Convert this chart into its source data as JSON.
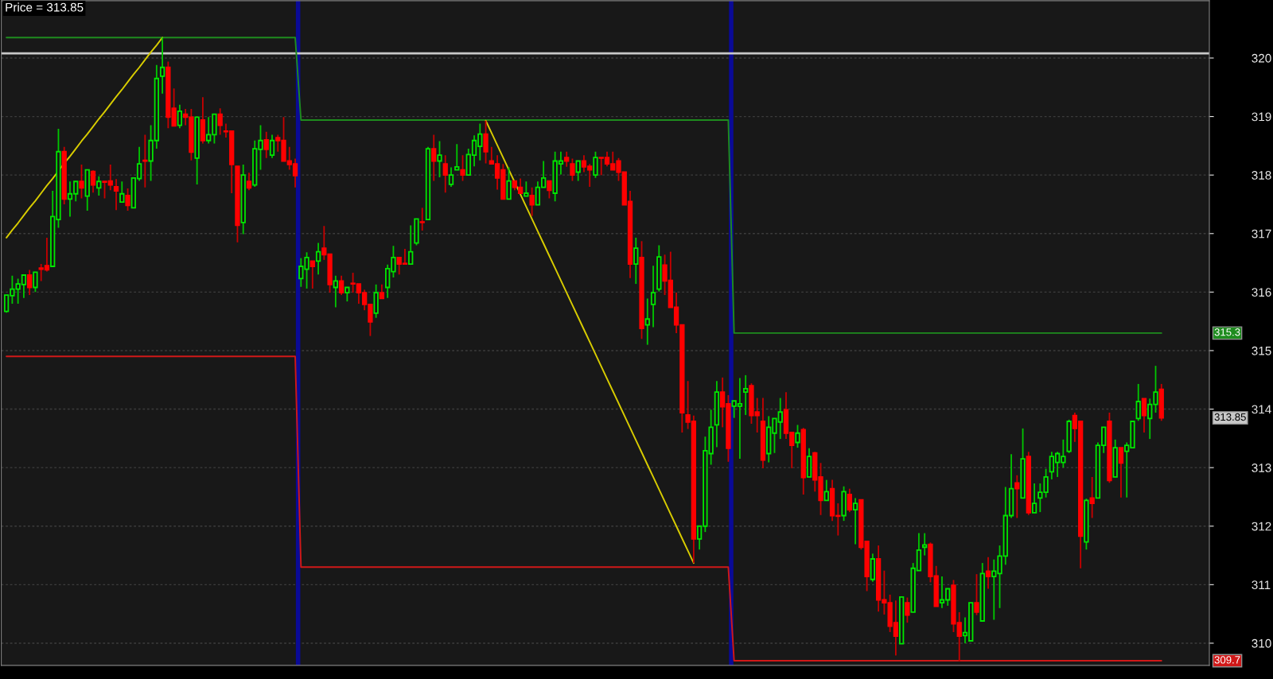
{
  "chart_data": {
    "type": "candlestick",
    "title": "Price = 313.85",
    "categories": [
      null,
      null,
      null,
      null,
      null,
      null,
      null,
      null,
      null,
      null,
      null,
      null,
      null,
      null,
      null,
      null,
      null,
      null,
      null,
      null,
      null,
      null,
      null,
      null,
      null,
      null,
      null,
      null,
      null,
      null,
      null,
      null,
      null,
      null,
      null,
      null,
      null,
      null,
      null,
      null,
      null,
      null,
      null,
      null,
      null,
      null,
      null,
      null,
      null,
      null,
      null,
      null,
      null,
      null,
      null,
      null,
      null,
      null,
      null,
      null,
      null,
      null,
      null,
      null,
      null,
      null,
      null,
      null,
      null,
      null,
      null,
      null,
      null,
      null,
      null,
      null,
      null,
      null,
      null,
      null,
      null,
      null,
      null,
      null,
      null,
      null,
      null,
      null,
      null,
      null,
      null,
      null,
      null,
      null,
      null,
      null,
      null,
      null,
      null,
      null,
      null,
      null,
      null,
      null,
      null,
      null,
      null,
      null,
      null,
      null,
      null,
      null,
      null,
      null,
      null,
      null,
      null,
      null,
      null,
      null,
      null,
      null,
      null,
      null,
      null,
      null,
      null,
      null,
      null,
      null,
      null,
      null,
      null,
      null,
      null,
      null,
      null,
      null,
      null,
      null,
      null,
      null,
      null,
      null,
      null,
      null,
      null,
      null,
      null,
      null,
      null,
      null,
      null,
      null,
      null,
      null,
      null,
      null,
      null,
      null,
      null,
      null,
      null,
      null,
      null,
      null,
      null,
      null,
      null,
      null,
      null,
      null,
      null,
      null,
      null,
      null,
      null,
      null,
      null,
      null,
      null,
      null,
      null,
      null,
      null,
      null,
      null,
      null,
      null,
      null,
      null,
      null,
      null,
      null,
      null,
      null,
      null,
      null,
      null,
      null,
      null
    ],
    "ohlc": [
      [
        315.67,
        315.95,
        315.65,
        315.95
      ],
      [
        315.94,
        316.28,
        315.8,
        316.05
      ],
      [
        316.05,
        316.23,
        315.8,
        316.14
      ],
      [
        316.13,
        316.29,
        315.9,
        316.29
      ],
      [
        316.29,
        316.38,
        315.95,
        316.08
      ],
      [
        316.08,
        316.34,
        316.0,
        316.34
      ],
      [
        316.41,
        316.48,
        316.19,
        316.39
      ],
      [
        316.45,
        316.93,
        316.35,
        316.38
      ],
      [
        316.44,
        317.73,
        316.44,
        317.29
      ],
      [
        317.24,
        318.79,
        317.1,
        318.4
      ],
      [
        318.4,
        318.48,
        317.5,
        317.59
      ],
      [
        317.59,
        317.89,
        317.29,
        317.68
      ],
      [
        317.68,
        317.89,
        317.55,
        317.89
      ],
      [
        317.89,
        318.18,
        317.6,
        317.78
      ],
      [
        317.64,
        318.09,
        317.39,
        318.09
      ],
      [
        318.06,
        318.08,
        317.7,
        317.83
      ],
      [
        317.78,
        317.98,
        317.65,
        317.89
      ],
      [
        317.89,
        317.89,
        317.6,
        317.88
      ],
      [
        317.9,
        318.18,
        317.74,
        317.83
      ],
      [
        317.8,
        317.93,
        317.4,
        317.73
      ],
      [
        317.54,
        317.89,
        317.54,
        317.68
      ],
      [
        317.65,
        317.77,
        317.39,
        317.48
      ],
      [
        317.44,
        317.95,
        317.44,
        317.95
      ],
      [
        317.94,
        318.48,
        317.9,
        318.19
      ],
      [
        318.25,
        318.69,
        317.79,
        318.24
      ],
      [
        318.24,
        318.85,
        317.9,
        318.59
      ],
      [
        318.59,
        319.88,
        318.45,
        319.65
      ],
      [
        319.69,
        320.35,
        319.39,
        319.84
      ],
      [
        319.84,
        319.94,
        318.8,
        318.99
      ],
      [
        319.14,
        319.48,
        318.84,
        318.84
      ],
      [
        318.85,
        319.2,
        318.8,
        319.09
      ],
      [
        319.04,
        319.13,
        318.85,
        318.99
      ],
      [
        318.99,
        319.13,
        318.25,
        318.39
      ],
      [
        318.29,
        318.99,
        317.84,
        318.99
      ],
      [
        318.94,
        319.33,
        318.54,
        318.59
      ],
      [
        318.59,
        318.99,
        318.54,
        318.69
      ],
      [
        318.69,
        319.04,
        318.54,
        319.04
      ],
      [
        319.04,
        319.14,
        318.69,
        318.85
      ],
      [
        318.75,
        318.88,
        318.64,
        318.74
      ],
      [
        318.75,
        318.75,
        317.69,
        318.18
      ],
      [
        318.15,
        318.15,
        316.85,
        317.14
      ],
      [
        317.19,
        318.18,
        316.99,
        318.0
      ],
      [
        317.89,
        318.04,
        317.74,
        317.78
      ],
      [
        317.83,
        318.59,
        317.8,
        318.45
      ],
      [
        318.44,
        318.85,
        318.09,
        318.59
      ],
      [
        318.6,
        318.74,
        318.29,
        318.44
      ],
      [
        318.34,
        318.69,
        318.29,
        318.59
      ],
      [
        318.64,
        318.69,
        318.4,
        318.59
      ],
      [
        318.59,
        318.99,
        318.24,
        318.24
      ],
      [
        318.24,
        318.48,
        318.09,
        318.18
      ],
      [
        318.19,
        318.28,
        317.79,
        317.99
      ],
      [
        316.23,
        316.58,
        316.09,
        316.44
      ],
      [
        316.39,
        316.68,
        316.06,
        316.59
      ],
      [
        316.53,
        316.53,
        316.06,
        316.44
      ],
      [
        316.53,
        316.84,
        316.3,
        316.69
      ],
      [
        316.75,
        317.13,
        316.55,
        316.64
      ],
      [
        316.65,
        316.65,
        315.99,
        316.13
      ],
      [
        316.08,
        316.28,
        315.74,
        316.19
      ],
      [
        316.19,
        316.28,
        315.95,
        315.99
      ],
      [
        315.99,
        316.08,
        315.84,
        316.08
      ],
      [
        316.15,
        316.33,
        315.99,
        316.14
      ],
      [
        316.14,
        316.14,
        315.8,
        315.99
      ],
      [
        315.99,
        316.04,
        315.69,
        315.79
      ],
      [
        315.79,
        315.79,
        315.25,
        315.49
      ],
      [
        315.64,
        316.13,
        315.56,
        315.99
      ],
      [
        315.99,
        316.13,
        315.89,
        315.89
      ],
      [
        316.08,
        316.47,
        315.9,
        316.4
      ],
      [
        316.35,
        316.79,
        316.25,
        316.59
      ],
      [
        316.59,
        316.59,
        316.3,
        316.48
      ],
      [
        316.49,
        316.74,
        316.48,
        316.48
      ],
      [
        316.48,
        317.14,
        316.48,
        316.69
      ],
      [
        316.84,
        317.25,
        316.8,
        317.25
      ],
      [
        317.2,
        317.44,
        317.05,
        317.19
      ],
      [
        317.24,
        318.48,
        317.24,
        318.45
      ],
      [
        318.45,
        318.69,
        317.9,
        318.24
      ],
      [
        318.24,
        318.58,
        317.96,
        318.34
      ],
      [
        318.19,
        318.34,
        317.7,
        318.0
      ],
      [
        317.84,
        318.13,
        317.8,
        318.0
      ],
      [
        318.09,
        318.53,
        318.09,
        318.14
      ],
      [
        318.09,
        318.34,
        317.9,
        318.0
      ],
      [
        318.0,
        318.45,
        318.0,
        318.35
      ],
      [
        318.34,
        318.68,
        318.15,
        318.59
      ],
      [
        318.49,
        318.88,
        318.25,
        318.7
      ],
      [
        318.7,
        318.93,
        318.2,
        318.4
      ],
      [
        318.24,
        318.48,
        318.19,
        318.19
      ],
      [
        318.19,
        318.34,
        317.75,
        317.95
      ],
      [
        318.09,
        318.19,
        317.59,
        317.59
      ],
      [
        317.59,
        318.13,
        317.59,
        317.9
      ],
      [
        317.9,
        317.9,
        317.74,
        317.79
      ],
      [
        317.79,
        317.94,
        317.69,
        317.69
      ],
      [
        317.64,
        317.89,
        317.64,
        317.69
      ],
      [
        317.65,
        317.79,
        317.3,
        317.49
      ],
      [
        317.49,
        317.89,
        317.49,
        317.79
      ],
      [
        317.79,
        318.24,
        317.79,
        317.95
      ],
      [
        317.9,
        317.9,
        317.6,
        317.74
      ],
      [
        317.69,
        318.4,
        317.55,
        318.24
      ],
      [
        318.19,
        318.4,
        318.01,
        318.24
      ],
      [
        318.3,
        318.4,
        318.14,
        318.24
      ],
      [
        318.19,
        318.28,
        317.9,
        318.0
      ],
      [
        318.05,
        318.24,
        317.9,
        318.24
      ],
      [
        318.24,
        318.34,
        318.05,
        318.14
      ],
      [
        318.15,
        318.19,
        317.8,
        318.09
      ],
      [
        318.0,
        318.4,
        317.95,
        318.3
      ],
      [
        318.3,
        318.3,
        318.0,
        318.29
      ],
      [
        318.3,
        318.4,
        318.15,
        318.19
      ],
      [
        318.19,
        318.4,
        318.09,
        318.09
      ],
      [
        318.24,
        318.29,
        317.9,
        318.05
      ],
      [
        318.05,
        318.05,
        317.49,
        317.49
      ],
      [
        317.55,
        317.73,
        316.24,
        316.48
      ],
      [
        316.48,
        316.93,
        316.14,
        316.75
      ],
      [
        316.59,
        316.87,
        315.2,
        315.38
      ],
      [
        315.44,
        315.89,
        315.1,
        315.54
      ],
      [
        315.79,
        316.45,
        315.4,
        315.99
      ],
      [
        316.05,
        316.8,
        316.01,
        316.6
      ],
      [
        316.46,
        316.64,
        315.95,
        316.19
      ],
      [
        316.2,
        316.69,
        315.74,
        315.74
      ],
      [
        315.74,
        315.99,
        315.3,
        315.44
      ],
      [
        315.44,
        315.44,
        313.6,
        313.94
      ],
      [
        313.9,
        314.48,
        313.66,
        313.78
      ],
      [
        313.79,
        313.89,
        311.37,
        311.78
      ],
      [
        311.78,
        312.0,
        311.6,
        312.0
      ],
      [
        312.0,
        313.53,
        311.9,
        313.29
      ],
      [
        313.24,
        313.99,
        313.05,
        313.69
      ],
      [
        313.73,
        314.48,
        313.35,
        314.29
      ],
      [
        314.29,
        314.54,
        313.69,
        314.04
      ],
      [
        314.09,
        314.24,
        313.1,
        313.33
      ],
      [
        314.05,
        314.14,
        313.85,
        314.14
      ],
      [
        314.05,
        314.53,
        313.15,
        314.09
      ],
      [
        314.29,
        314.58,
        313.9,
        314.35
      ],
      [
        314.4,
        314.44,
        313.75,
        313.89
      ],
      [
        313.95,
        314.19,
        313.6,
        313.89
      ],
      [
        313.79,
        314.19,
        312.99,
        313.13
      ],
      [
        313.24,
        313.88,
        313.09,
        313.69
      ],
      [
        313.59,
        313.84,
        313.25,
        313.84
      ],
      [
        313.78,
        314.19,
        313.49,
        313.95
      ],
      [
        313.99,
        314.29,
        313.49,
        313.59
      ],
      [
        313.6,
        313.6,
        312.99,
        313.38
      ],
      [
        313.43,
        313.73,
        313.34,
        313.59
      ],
      [
        313.65,
        313.68,
        312.54,
        312.83
      ],
      [
        312.84,
        313.33,
        312.84,
        313.19
      ],
      [
        313.25,
        313.27,
        312.59,
        312.79
      ],
      [
        312.84,
        313.08,
        312.19,
        312.44
      ],
      [
        312.44,
        312.79,
        312.44,
        312.59
      ],
      [
        312.64,
        312.79,
        312.09,
        312.18
      ],
      [
        312.18,
        312.39,
        311.84,
        312.17
      ],
      [
        312.18,
        312.68,
        312.09,
        312.59
      ],
      [
        312.54,
        312.64,
        312.24,
        312.28
      ],
      [
        312.28,
        312.48,
        311.69,
        312.39
      ],
      [
        312.45,
        312.45,
        311.6,
        311.64
      ],
      [
        311.74,
        311.74,
        310.89,
        311.14
      ],
      [
        311.09,
        311.53,
        311.05,
        311.44
      ],
      [
        311.44,
        311.67,
        310.54,
        310.74
      ],
      [
        310.74,
        311.24,
        310.49,
        310.69
      ],
      [
        310.69,
        310.83,
        310.19,
        310.29
      ],
      [
        310.35,
        310.73,
        309.79,
        310.12
      ],
      [
        309.99,
        310.79,
        309.99,
        310.79
      ],
      [
        310.69,
        310.78,
        310.35,
        310.48
      ],
      [
        310.53,
        311.37,
        310.53,
        311.28
      ],
      [
        311.24,
        311.88,
        311.24,
        311.59
      ],
      [
        311.64,
        311.88,
        311.5,
        311.68
      ],
      [
        311.69,
        311.72,
        311.04,
        311.14
      ],
      [
        311.15,
        311.32,
        310.63,
        310.63
      ],
      [
        310.69,
        311.14,
        310.6,
        310.74
      ],
      [
        310.74,
        310.93,
        310.64,
        310.93
      ],
      [
        310.99,
        311.08,
        310.19,
        310.33
      ],
      [
        310.35,
        310.53,
        309.69,
        310.12
      ],
      [
        310.13,
        310.44,
        310.0,
        310.18
      ],
      [
        310.04,
        310.69,
        310.04,
        310.69
      ],
      [
        310.69,
        311.18,
        310.48,
        310.53
      ],
      [
        310.38,
        311.37,
        310.38,
        311.19
      ],
      [
        311.23,
        311.47,
        310.93,
        311.14
      ],
      [
        311.14,
        311.43,
        310.4,
        311.23
      ],
      [
        311.19,
        311.67,
        310.6,
        311.49
      ],
      [
        311.49,
        312.67,
        311.34,
        312.18
      ],
      [
        312.18,
        313.23,
        312.14,
        312.64
      ],
      [
        312.74,
        312.87,
        312.14,
        312.64
      ],
      [
        312.48,
        313.67,
        312.48,
        313.15
      ],
      [
        313.19,
        313.27,
        312.19,
        312.23
      ],
      [
        312.23,
        312.73,
        312.23,
        312.39
      ],
      [
        312.48,
        312.73,
        312.24,
        312.58
      ],
      [
        312.58,
        312.98,
        312.49,
        312.84
      ],
      [
        312.93,
        313.27,
        312.8,
        313.19
      ],
      [
        313.09,
        313.27,
        312.84,
        313.24
      ],
      [
        313.09,
        313.48,
        313.0,
        313.19
      ],
      [
        313.28,
        313.82,
        313.25,
        313.79
      ],
      [
        313.89,
        313.94,
        313.44,
        313.67
      ],
      [
        313.79,
        313.79,
        311.28,
        311.83
      ],
      [
        311.73,
        312.47,
        311.6,
        312.44
      ],
      [
        312.48,
        312.84,
        312.14,
        312.39
      ],
      [
        312.48,
        313.43,
        312.48,
        313.38
      ],
      [
        313.38,
        313.69,
        313.25,
        313.69
      ],
      [
        313.79,
        313.94,
        312.74,
        312.78
      ],
      [
        312.84,
        313.48,
        312.84,
        313.34
      ],
      [
        313.34,
        313.34,
        312.49,
        313.08
      ],
      [
        313.28,
        313.43,
        312.49,
        313.38
      ],
      [
        313.34,
        313.79,
        313.33,
        313.79
      ],
      [
        313.84,
        314.43,
        313.8,
        314.13
      ],
      [
        314.18,
        314.18,
        313.6,
        313.89
      ],
      [
        313.84,
        314.18,
        313.49,
        314.08
      ],
      [
        314.08,
        314.74,
        313.94,
        314.29
      ],
      [
        314.34,
        314.43,
        313.8,
        313.85
      ]
    ],
    "series": [
      {
        "type": "line",
        "color": "#1e8c1e",
        "values": [
          320.35,
          320.35,
          320.35,
          320.35,
          320.35,
          320.35,
          320.35,
          320.35,
          320.35,
          320.35,
          320.35,
          320.35,
          320.35,
          320.35,
          320.35,
          320.35,
          320.35,
          320.35,
          320.35,
          320.35,
          320.35,
          320.35,
          320.35,
          320.35,
          320.35,
          320.35,
          320.35,
          320.35,
          320.35,
          320.35,
          320.35,
          320.35,
          320.35,
          320.35,
          320.35,
          320.35,
          320.35,
          320.35,
          320.35,
          320.35,
          320.35,
          320.35,
          320.35,
          320.35,
          320.35,
          320.35,
          320.35,
          320.35,
          320.35,
          320.35,
          320.35,
          318.94,
          318.94,
          318.94,
          318.94,
          318.94,
          318.94,
          318.94,
          318.94,
          318.94,
          318.94,
          318.94,
          318.94,
          318.94,
          318.94,
          318.94,
          318.94,
          318.94,
          318.94,
          318.94,
          318.94,
          318.94,
          318.94,
          318.94,
          318.94,
          318.94,
          318.94,
          318.94,
          318.94,
          318.94,
          318.94,
          318.94,
          318.94,
          318.94,
          318.94,
          318.94,
          318.94,
          318.94,
          318.94,
          318.94,
          318.94,
          318.94,
          318.94,
          318.94,
          318.94,
          318.94,
          318.94,
          318.94,
          318.94,
          318.94,
          318.94,
          318.94,
          318.94,
          318.94,
          318.94,
          318.94,
          318.94,
          318.94,
          318.94,
          318.94,
          318.94,
          318.94,
          318.94,
          318.94,
          318.94,
          318.94,
          318.94,
          318.94,
          318.94,
          318.94,
          318.94,
          318.94,
          318.94,
          318.94,
          318.94,
          318.94,
          315.3,
          315.3,
          315.3,
          315.3,
          315.3,
          315.3,
          315.3,
          315.3,
          315.3,
          315.3,
          315.3,
          315.3,
          315.3,
          315.3,
          315.3,
          315.3,
          315.3,
          315.3,
          315.3,
          315.3,
          315.3,
          315.3,
          315.3,
          315.3,
          315.3,
          315.3,
          315.3,
          315.3,
          315.3,
          315.3,
          315.3,
          315.3,
          315.3,
          315.3,
          315.3,
          315.3,
          315.3,
          315.3,
          315.3,
          315.3,
          315.3,
          315.3,
          315.3,
          315.3,
          315.3,
          315.3,
          315.3,
          315.3,
          315.3,
          315.3,
          315.3,
          315.3,
          315.3,
          315.3,
          315.3,
          315.3,
          315.3,
          315.3,
          315.3,
          315.3,
          315.3,
          315.3,
          315.3,
          315.3,
          315.3,
          315.3,
          315.3,
          315.3,
          315.3,
          315.3,
          315.3,
          315.3,
          315.3,
          315.3,
          315.3
        ]
      },
      {
        "type": "line",
        "color": "#d01818",
        "values": [
          314.9,
          314.9,
          314.9,
          314.9,
          314.9,
          314.9,
          314.9,
          314.9,
          314.9,
          314.9,
          314.9,
          314.9,
          314.9,
          314.9,
          314.9,
          314.9,
          314.9,
          314.9,
          314.9,
          314.9,
          314.9,
          314.9,
          314.9,
          314.9,
          314.9,
          314.9,
          314.9,
          314.9,
          314.9,
          314.9,
          314.9,
          314.9,
          314.9,
          314.9,
          314.9,
          314.9,
          314.9,
          314.9,
          314.9,
          314.9,
          314.9,
          314.9,
          314.9,
          314.9,
          314.9,
          314.9,
          314.9,
          314.9,
          314.9,
          314.9,
          314.9,
          311.3,
          311.3,
          311.3,
          311.3,
          311.3,
          311.3,
          311.3,
          311.3,
          311.3,
          311.3,
          311.3,
          311.3,
          311.3,
          311.3,
          311.3,
          311.3,
          311.3,
          311.3,
          311.3,
          311.3,
          311.3,
          311.3,
          311.3,
          311.3,
          311.3,
          311.3,
          311.3,
          311.3,
          311.3,
          311.3,
          311.3,
          311.3,
          311.3,
          311.3,
          311.3,
          311.3,
          311.3,
          311.3,
          311.3,
          311.3,
          311.3,
          311.3,
          311.3,
          311.3,
          311.3,
          311.3,
          311.3,
          311.3,
          311.3,
          311.3,
          311.3,
          311.3,
          311.3,
          311.3,
          311.3,
          311.3,
          311.3,
          311.3,
          311.3,
          311.3,
          311.3,
          311.3,
          311.3,
          311.3,
          311.3,
          311.3,
          311.3,
          311.3,
          311.3,
          311.3,
          311.3,
          311.3,
          311.3,
          311.3,
          311.3,
          309.7,
          309.7,
          309.7,
          309.7,
          309.7,
          309.7,
          309.7,
          309.7,
          309.7,
          309.7,
          309.7,
          309.7,
          309.7,
          309.7,
          309.7,
          309.7,
          309.7,
          309.7,
          309.7,
          309.7,
          309.7,
          309.7,
          309.7,
          309.7,
          309.7,
          309.7,
          309.7,
          309.7,
          309.7,
          309.7,
          309.7,
          309.7,
          309.7,
          309.7,
          309.7,
          309.7,
          309.7,
          309.7,
          309.7,
          309.7,
          309.7,
          309.7,
          309.7,
          309.7,
          309.7,
          309.7,
          309.7,
          309.7,
          309.7,
          309.7,
          309.7,
          309.7,
          309.7,
          309.7,
          309.7,
          309.7,
          309.7,
          309.7,
          309.7,
          309.7,
          309.7,
          309.7,
          309.7,
          309.7,
          309.7,
          309.7,
          309.7,
          309.7,
          309.7,
          309.7,
          309.7,
          309.7,
          309.7,
          309.7,
          309.7
        ]
      },
      {
        "type": "line",
        "color": "#d8cc00",
        "values": [
          316.93,
          317.06,
          317.18,
          317.31,
          317.44,
          317.56,
          317.69,
          317.82,
          317.94,
          318.07,
          318.2,
          318.32,
          318.45,
          318.58,
          318.7,
          318.83,
          318.96,
          319.08,
          319.21,
          319.34,
          319.46,
          319.59,
          319.72,
          319.84,
          319.97,
          320.1,
          320.22,
          320.35,
          null,
          null,
          null,
          null,
          null,
          null,
          null,
          null,
          null,
          null,
          null,
          null,
          null,
          null,
          null,
          null,
          null,
          null,
          null,
          null,
          null,
          null,
          null,
          null,
          null,
          null,
          null,
          null,
          null,
          null,
          null,
          null,
          null,
          null,
          null,
          null,
          null,
          null,
          null,
          null,
          null,
          null,
          null,
          null,
          null,
          null,
          null,
          null,
          null,
          null,
          null,
          null,
          null,
          null,
          null,
          318.93,
          318.72,
          318.51,
          318.3,
          318.09,
          317.88,
          317.67,
          317.46,
          317.25,
          317.04,
          316.83,
          316.62,
          316.41,
          316.2,
          315.99,
          315.78,
          315.57,
          315.36,
          315.15,
          314.94,
          314.73,
          314.52,
          314.31,
          314.1,
          313.89,
          313.68,
          313.47,
          313.26,
          313.05,
          312.84,
          312.63,
          312.42,
          312.21,
          312.0,
          311.79,
          311.58,
          311.37,
          null,
          null,
          null,
          null,
          null,
          null,
          null,
          null,
          null,
          null,
          null,
          null,
          null,
          null,
          null,
          null,
          null,
          null,
          null,
          null,
          null,
          null,
          null,
          null,
          null,
          null,
          null,
          null,
          null,
          null,
          null,
          null,
          null,
          null,
          null,
          null,
          null,
          null,
          null,
          null,
          null,
          null,
          null,
          null,
          null,
          null,
          null,
          null,
          null,
          null,
          null,
          null,
          null,
          null,
          null,
          null,
          null,
          null,
          null,
          null,
          null,
          null,
          null,
          null,
          null,
          null,
          null,
          null,
          null,
          null,
          null,
          null,
          null,
          null,
          null,
          null,
          null,
          null,
          null,
          null,
          null
        ]
      }
    ],
    "ylim": [
      309.62,
      320.98
    ],
    "yticks": [
      310,
      311,
      312,
      313,
      314,
      315,
      316,
      317,
      318,
      319,
      320
    ],
    "grid": "y",
    "ref_lines": [
      {
        "axis": "y",
        "value": 320.08,
        "color": "#c8c8c8"
      }
    ],
    "annotations": [
      "315.3",
      "309.7",
      "313.85"
    ]
  }
}
